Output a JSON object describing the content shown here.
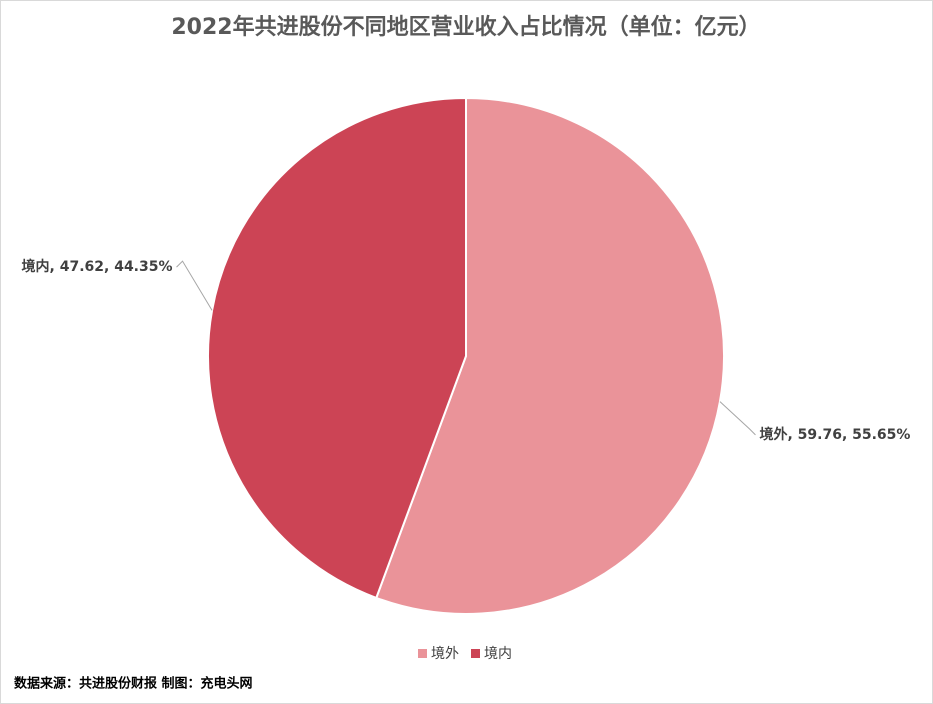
{
  "chart_data": {
    "type": "pie",
    "title": "2022年共进股份不同地区营业收入占比情况（单位：亿元）",
    "categories": [
      "境外",
      "境内"
    ],
    "values": [
      59.76,
      47.62
    ],
    "value_labels": [
      "境外, 59.76, 55.65%",
      "境内, 47.62, 44.35%"
    ],
    "colors": [
      "#ea9399",
      "#cc4455"
    ],
    "legend": "bottom",
    "source": "数据来源：共进股份财报  制图：充电头网"
  }
}
